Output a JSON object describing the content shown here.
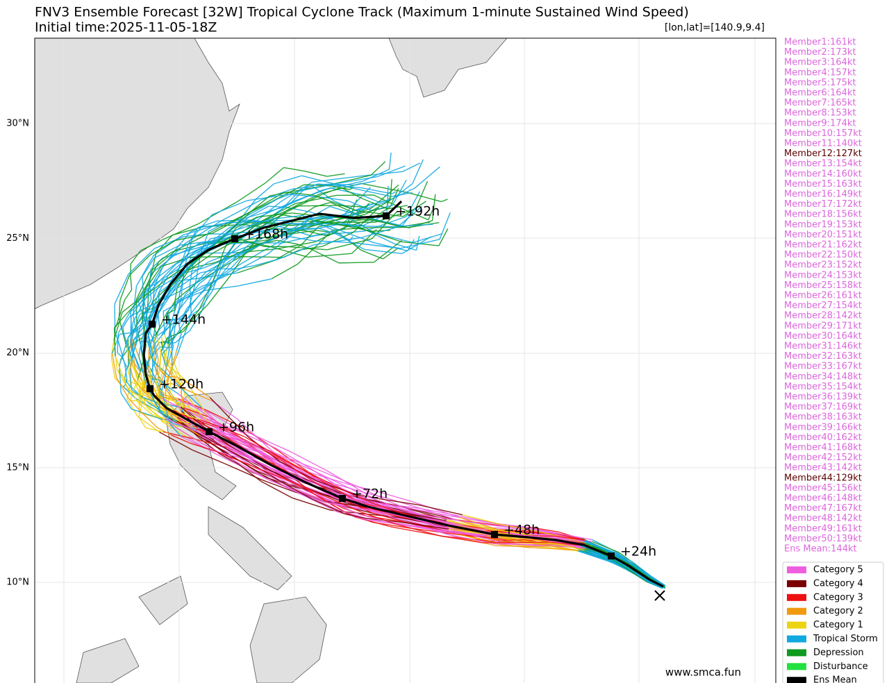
{
  "header": {
    "title": "FNV3 Ensemble Forecast [32W] Tropical Cyclone Track (Maximum 1-minute Sustained Wind Speed)",
    "initial_time": "Initial time:2025-11-05-18Z",
    "coords": "[lon,lat]=[140.9,9.4]"
  },
  "members": [
    {
      "label": "Member1:161kt",
      "color": "#dd66dd"
    },
    {
      "label": "Member2:173kt",
      "color": "#dd66dd"
    },
    {
      "label": "Member3:164kt",
      "color": "#dd66dd"
    },
    {
      "label": "Member4:157kt",
      "color": "#dd66dd"
    },
    {
      "label": "Member5:175kt",
      "color": "#dd66dd"
    },
    {
      "label": "Member6:164kt",
      "color": "#dd66dd"
    },
    {
      "label": "Member7:165kt",
      "color": "#dd66dd"
    },
    {
      "label": "Member8:153kt",
      "color": "#dd66dd"
    },
    {
      "label": "Member9:174kt",
      "color": "#dd66dd"
    },
    {
      "label": "Member10:157kt",
      "color": "#dd66dd"
    },
    {
      "label": "Member11:140kt",
      "color": "#dd66dd"
    },
    {
      "label": "Member12:127kt",
      "color": "#5c0000"
    },
    {
      "label": "Member13:154kt",
      "color": "#dd66dd"
    },
    {
      "label": "Member14:160kt",
      "color": "#dd66dd"
    },
    {
      "label": "Member15:163kt",
      "color": "#dd66dd"
    },
    {
      "label": "Member16:149kt",
      "color": "#dd66dd"
    },
    {
      "label": "Member17:172kt",
      "color": "#dd66dd"
    },
    {
      "label": "Member18:156kt",
      "color": "#dd66dd"
    },
    {
      "label": "Member19:153kt",
      "color": "#dd66dd"
    },
    {
      "label": "Member20:151kt",
      "color": "#dd66dd"
    },
    {
      "label": "Member21:162kt",
      "color": "#dd66dd"
    },
    {
      "label": "Member22:150kt",
      "color": "#dd66dd"
    },
    {
      "label": "Member23:152kt",
      "color": "#dd66dd"
    },
    {
      "label": "Member24:153kt",
      "color": "#dd66dd"
    },
    {
      "label": "Member25:158kt",
      "color": "#dd66dd"
    },
    {
      "label": "Member26:161kt",
      "color": "#dd66dd"
    },
    {
      "label": "Member27:154kt",
      "color": "#dd66dd"
    },
    {
      "label": "Member28:142kt",
      "color": "#dd66dd"
    },
    {
      "label": "Member29:171kt",
      "color": "#dd66dd"
    },
    {
      "label": "Member30:164kt",
      "color": "#dd66dd"
    },
    {
      "label": "Member31:146kt",
      "color": "#dd66dd"
    },
    {
      "label": "Member32:163kt",
      "color": "#dd66dd"
    },
    {
      "label": "Member33:167kt",
      "color": "#dd66dd"
    },
    {
      "label": "Member34:148kt",
      "color": "#dd66dd"
    },
    {
      "label": "Member35:154kt",
      "color": "#dd66dd"
    },
    {
      "label": "Member36:139kt",
      "color": "#dd66dd"
    },
    {
      "label": "Member37:169kt",
      "color": "#dd66dd"
    },
    {
      "label": "Member38:163kt",
      "color": "#dd66dd"
    },
    {
      "label": "Member39:166kt",
      "color": "#dd66dd"
    },
    {
      "label": "Member40:162kt",
      "color": "#dd66dd"
    },
    {
      "label": "Member41:168kt",
      "color": "#dd66dd"
    },
    {
      "label": "Member42:152kt",
      "color": "#dd66dd"
    },
    {
      "label": "Member43:142kt",
      "color": "#dd66dd"
    },
    {
      "label": "Member44:129kt",
      "color": "#5c0000"
    },
    {
      "label": "Member45:156kt",
      "color": "#dd66dd"
    },
    {
      "label": "Member46:148kt",
      "color": "#dd66dd"
    },
    {
      "label": "Member47:167kt",
      "color": "#dd66dd"
    },
    {
      "label": "Member48:142kt",
      "color": "#dd66dd"
    },
    {
      "label": "Member49:161kt",
      "color": "#dd66dd"
    },
    {
      "label": "Member50:139kt",
      "color": "#dd66dd"
    }
  ],
  "ensemble_mean": {
    "label": "Ens Mean:144kt",
    "color": "#dd66dd"
  },
  "latitude_labels": [
    "30°N",
    "25°N",
    "20°N",
    "15°N",
    "10°N"
  ],
  "track_labels": [
    "+24h",
    "+48h",
    "+72h",
    "+96h",
    "+120h",
    "+144h",
    "+168h",
    "+192h"
  ],
  "legend": [
    {
      "label": "Category 5",
      "color": "#ee5fe0"
    },
    {
      "label": "Category 4",
      "color": "#7a0000"
    },
    {
      "label": "Category 3",
      "color": "#ee1010"
    },
    {
      "label": "Category 2",
      "color": "#f09a10"
    },
    {
      "label": "Category 1",
      "color": "#ecd412"
    },
    {
      "label": "Tropical Storm",
      "color": "#12a8e0"
    },
    {
      "label": "Depression",
      "color": "#0f9a20"
    },
    {
      "label": "Disturbance",
      "color": "#22e040"
    },
    {
      "label": "Ens Mean",
      "color": "#000000"
    }
  ],
  "watermark": "www.smca.fun"
}
